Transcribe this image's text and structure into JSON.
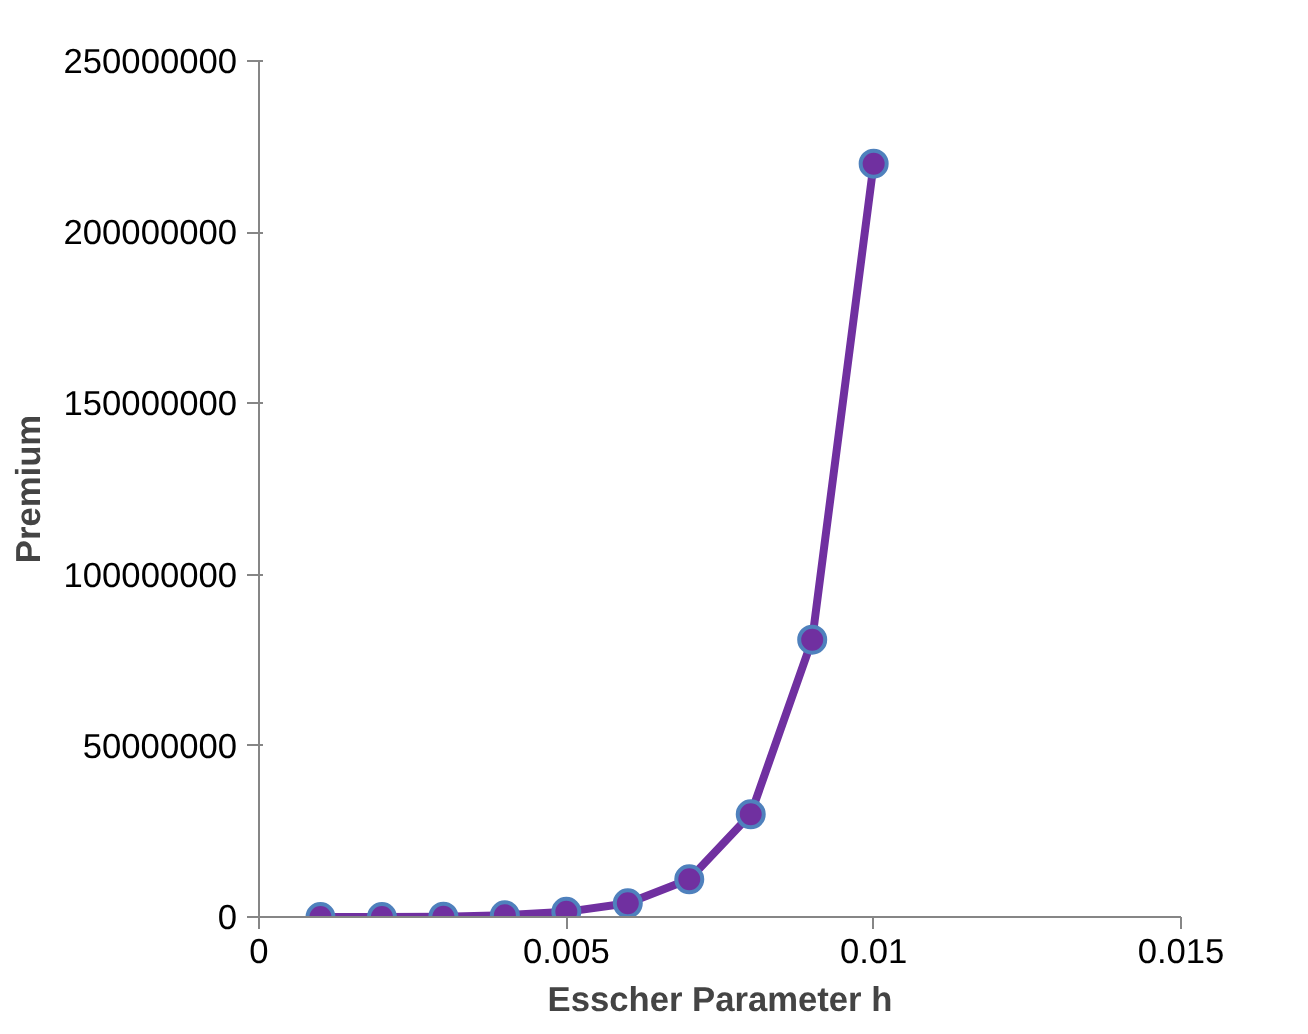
{
  "chart_data": {
    "type": "line",
    "xlabel": "Esscher Parameter h",
    "ylabel": "Premium",
    "x": [
      0.001,
      0.002,
      0.003,
      0.004,
      0.005,
      0.006,
      0.007,
      0.008,
      0.009,
      0.01
    ],
    "series": [
      {
        "color": "#7030a0",
        "values": [
          0,
          0,
          100000,
          500000,
          1500000,
          4000000,
          11000000,
          30000000,
          81000000,
          220000000
        ]
      }
    ],
    "xlim": [
      0,
      0.015
    ],
    "xticks": [
      0,
      0.005,
      0.01,
      0.015
    ],
    "ylim": [
      0,
      250000000
    ],
    "yticks": [
      0,
      50000000,
      100000000,
      150000000,
      200000000,
      250000000
    ],
    "grid": false,
    "marker": "circle",
    "line_style": "solid"
  }
}
